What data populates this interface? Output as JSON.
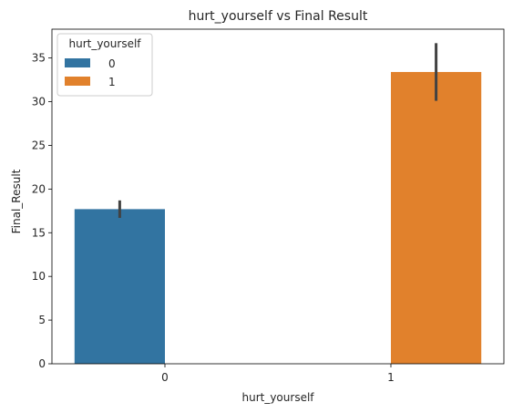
{
  "chart_data": {
    "type": "bar",
    "title": "hurt_yourself vs Final Result",
    "xlabel": "hurt_yourself",
    "ylabel": "Final_Result",
    "categories": [
      "0",
      "1"
    ],
    "ylim": [
      0,
      38.3
    ],
    "yticks": [
      0,
      5,
      10,
      15,
      20,
      25,
      30,
      35
    ],
    "grid": false,
    "legend": {
      "title": "hurt_yourself",
      "placement": "top-left"
    },
    "series": [
      {
        "name": "0",
        "color": "#3274a1",
        "values": [
          17.7,
          null
        ],
        "err_low": [
          16.7,
          null
        ],
        "err_high": [
          18.7,
          null
        ]
      },
      {
        "name": "1",
        "color": "#e1812c",
        "values": [
          null,
          33.4
        ],
        "err_low": [
          null,
          30.1
        ],
        "err_high": [
          null,
          36.7
        ]
      }
    ]
  }
}
